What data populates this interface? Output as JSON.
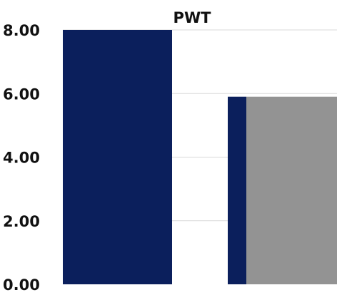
{
  "chart_data": {
    "type": "bar",
    "title": "PWT",
    "xlabel": "",
    "ylabel": "",
    "ylim": [
      0,
      8
    ],
    "yticks": [
      "0.00",
      "2.00",
      "4.00",
      "6.00",
      "8.00"
    ],
    "grid": true,
    "legend": "none",
    "series": [
      {
        "values": [
          8.0,
          5.9
        ],
        "color": "#0b1f5c"
      },
      {
        "values": [
          null,
          5.9
        ],
        "color": "#939393"
      }
    ]
  }
}
